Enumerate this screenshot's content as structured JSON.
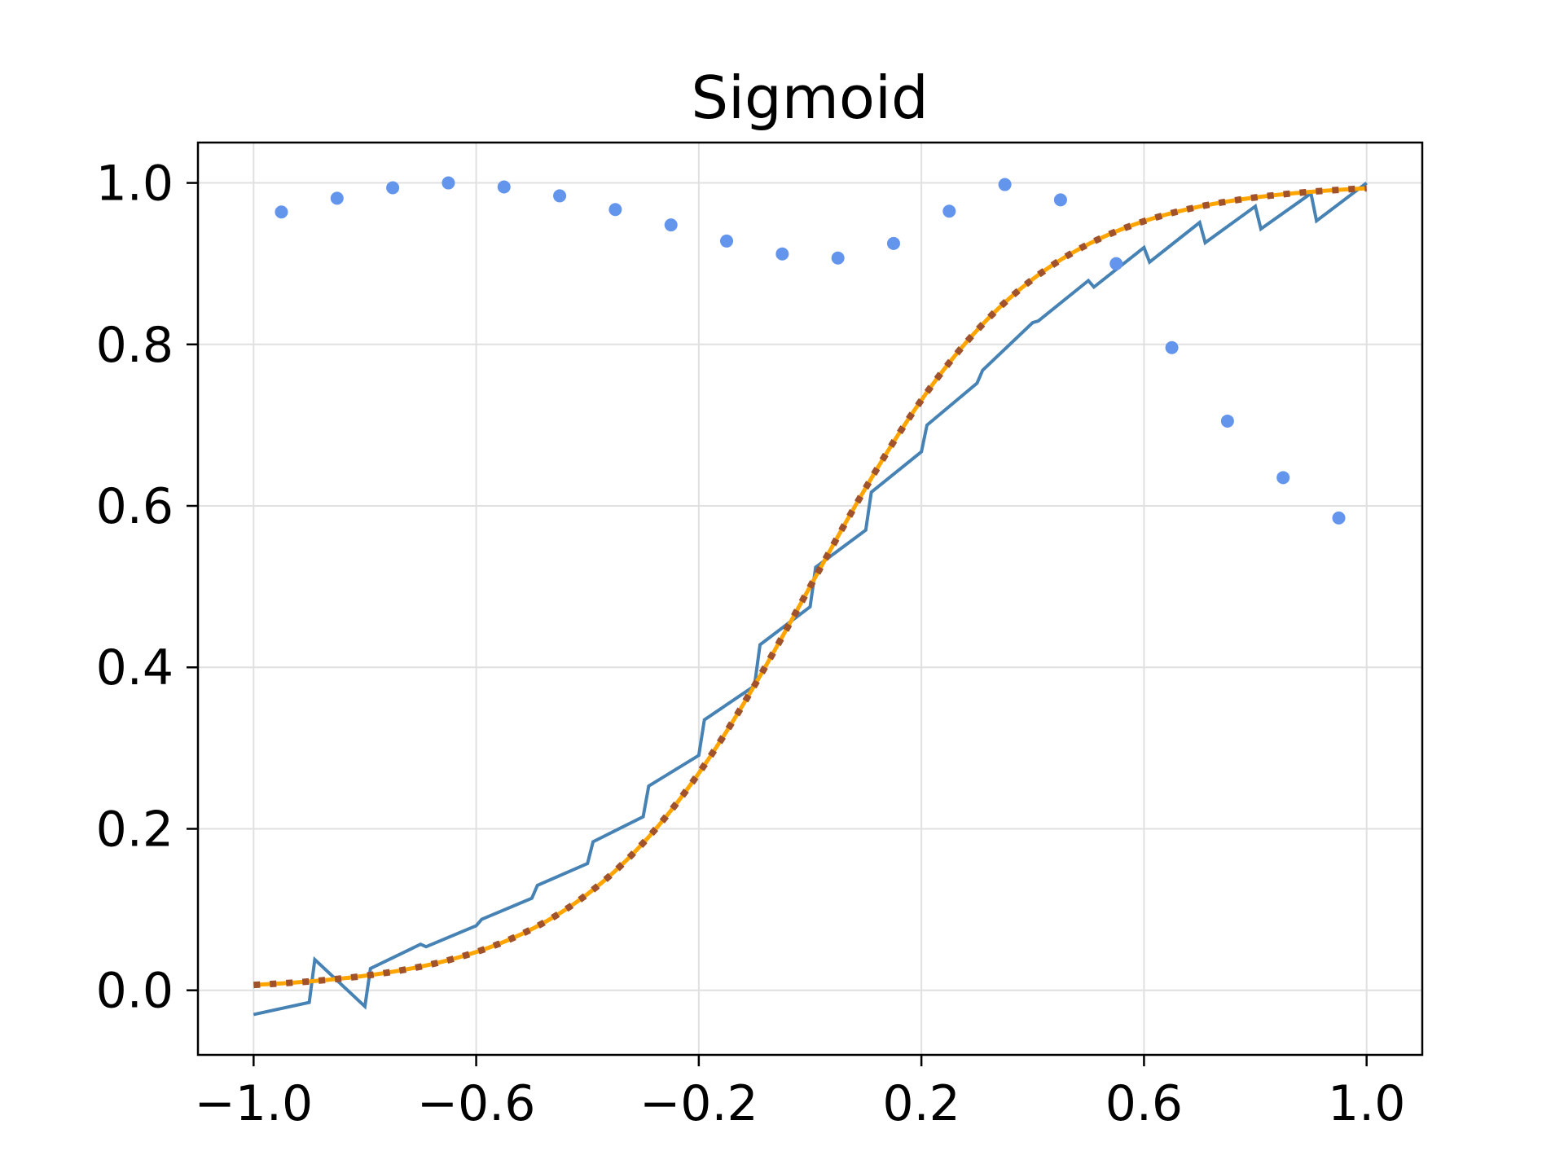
{
  "chart_data": {
    "type": "line",
    "title": "Sigmoid",
    "xlabel": "",
    "ylabel": "",
    "xlim": [
      -1.1,
      1.1
    ],
    "ylim": [
      -0.08,
      1.05
    ],
    "grid": true,
    "x_ticks": [
      -1.0,
      -0.6,
      -0.2,
      0.2,
      0.6,
      1.0
    ],
    "x_tick_labels": [
      "−1.0",
      "−0.6",
      "−0.2",
      "0.2",
      "0.6",
      "1.0"
    ],
    "y_ticks": [
      0.0,
      0.2,
      0.4,
      0.6,
      0.8,
      1.0
    ],
    "y_tick_labels": [
      "0.0",
      "0.2",
      "0.4",
      "0.6",
      "0.8",
      "1.0"
    ],
    "colors": {
      "noisy": "#4682b4",
      "smooth": "#ffa500",
      "dotted": "#a0522d",
      "scatter": "#6495ed",
      "grid": "#e0e0e0",
      "axes": "#000000"
    },
    "series": [
      {
        "style": "noisy-line",
        "x": [
          -1.0,
          -0.9,
          -0.89,
          -0.8,
          -0.79,
          -0.7,
          -0.69,
          -0.6,
          -0.59,
          -0.5,
          -0.49,
          -0.4,
          -0.39,
          -0.3,
          -0.29,
          -0.2,
          -0.19,
          -0.1,
          -0.09,
          0.0,
          0.01,
          0.1,
          0.11,
          0.2,
          0.21,
          0.3,
          0.31,
          0.4,
          0.41,
          0.5,
          0.51,
          0.6,
          0.61,
          0.7,
          0.71,
          0.8,
          0.81,
          0.9,
          0.91,
          1.0
        ],
        "y": [
          -0.03,
          -0.015,
          0.038,
          -0.02,
          0.027,
          0.057,
          0.054,
          0.08,
          0.088,
          0.114,
          0.13,
          0.157,
          0.184,
          0.215,
          0.253,
          0.291,
          0.335,
          0.377,
          0.428,
          0.475,
          0.524,
          0.57,
          0.617,
          0.667,
          0.7,
          0.752,
          0.768,
          0.827,
          0.829,
          0.879,
          0.871,
          0.92,
          0.902,
          0.951,
          0.926,
          0.971,
          0.943,
          0.987,
          0.953,
          1.0
        ]
      },
      {
        "style": "smooth-line",
        "function": "sigmoid(5x)",
        "x": [
          -1.0,
          -0.9,
          -0.8,
          -0.7,
          -0.6,
          -0.5,
          -0.4,
          -0.3,
          -0.2,
          -0.1,
          0.0,
          0.1,
          0.2,
          0.3,
          0.4,
          0.5,
          0.6,
          0.7,
          0.8,
          0.9,
          1.0
        ],
        "y": [
          0.018,
          0.027,
          0.036,
          0.052,
          0.071,
          0.104,
          0.15,
          0.21,
          0.29,
          0.38,
          0.5,
          0.62,
          0.71,
          0.79,
          0.85,
          0.896,
          0.929,
          0.948,
          0.964,
          0.973,
          0.982
        ]
      },
      {
        "style": "dotted-line",
        "function": "sigmoid(5x)",
        "x": [
          -1.0,
          -0.9,
          -0.8,
          -0.7,
          -0.6,
          -0.5,
          -0.4,
          -0.3,
          -0.2,
          -0.1,
          0.0,
          0.1,
          0.2,
          0.3,
          0.4,
          0.5,
          0.6,
          0.7,
          0.8,
          0.9,
          1.0
        ],
        "y": [
          0.018,
          0.027,
          0.036,
          0.052,
          0.071,
          0.104,
          0.15,
          0.21,
          0.29,
          0.38,
          0.5,
          0.62,
          0.71,
          0.79,
          0.85,
          0.896,
          0.929,
          0.948,
          0.964,
          0.973,
          0.982
        ]
      },
      {
        "style": "scatter",
        "x": [
          -0.95,
          -0.85,
          -0.75,
          -0.65,
          -0.55,
          -0.45,
          -0.35,
          -0.25,
          -0.15,
          -0.05,
          0.05,
          0.15,
          0.25,
          0.35,
          0.45,
          0.55,
          0.65,
          0.75,
          0.85,
          0.95
        ],
        "y": [
          0.964,
          0.981,
          0.994,
          1.0,
          0.995,
          0.984,
          0.967,
          0.948,
          0.928,
          0.912,
          0.907,
          0.925,
          0.965,
          0.998,
          0.979,
          0.9,
          0.796,
          0.705,
          0.635,
          0.585
        ]
      }
    ]
  }
}
